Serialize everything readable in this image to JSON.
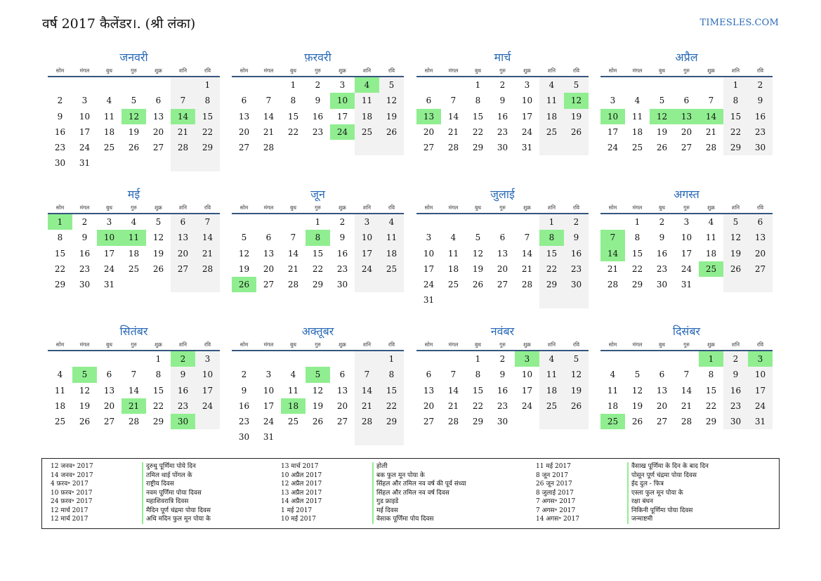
{
  "header": {
    "title": "वर्ष 2017 कैलेंडर।. (श्री लंका)",
    "brand": "TIMESLES.COM"
  },
  "weekdays": [
    "सोम",
    "मंगल",
    "बुध",
    "गुरु",
    "शुक्र",
    "शनि",
    "रवि"
  ],
  "months": [
    {
      "name": "जनवरी",
      "offset": 6,
      "days": 31,
      "holidays": [
        12,
        14
      ]
    },
    {
      "name": "फ़रवरी",
      "offset": 2,
      "days": 28,
      "holidays": [
        4,
        10,
        24
      ]
    },
    {
      "name": "मार्च",
      "offset": 2,
      "days": 31,
      "holidays": [
        12,
        13
      ]
    },
    {
      "name": "अप्रैल",
      "offset": 5,
      "days": 30,
      "holidays": [
        10,
        12,
        13,
        14
      ]
    },
    {
      "name": "मई",
      "offset": 0,
      "days": 31,
      "holidays": [
        1,
        10,
        11
      ]
    },
    {
      "name": "जून",
      "offset": 3,
      "days": 30,
      "holidays": [
        8,
        26
      ]
    },
    {
      "name": "जुलाई",
      "offset": 5,
      "days": 31,
      "holidays": [
        8
      ]
    },
    {
      "name": "अगस्त",
      "offset": 1,
      "days": 31,
      "holidays": [
        7,
        14,
        25
      ]
    },
    {
      "name": "सितंबर",
      "offset": 4,
      "days": 30,
      "holidays": [
        2,
        5,
        21,
        30
      ]
    },
    {
      "name": "अक्तूबर",
      "offset": 6,
      "days": 31,
      "holidays": [
        5,
        18
      ]
    },
    {
      "name": "नवंबर",
      "offset": 2,
      "days": 30,
      "holidays": [
        3
      ]
    },
    {
      "name": "दिसंबर",
      "offset": 4,
      "days": 31,
      "holidays": [
        1,
        3,
        25
      ]
    }
  ],
  "holidays": [
    [
      {
        "date": "12 जनव॰ 2017",
        "name": "दुरुथु पूर्णिमा पोये दिन"
      },
      {
        "date": "14 जनव॰ 2017",
        "name": "तमिल थाई पोंगल के"
      },
      {
        "date": "4 फ़रव॰ 2017",
        "name": "राष्ट्रीय दिवस"
      },
      {
        "date": "10 फ़रव॰ 2017",
        "name": "नवम पूर्णिमा पोया दिवस"
      },
      {
        "date": "24 फ़रव॰ 2017",
        "name": "महाशिवरात्रि दिवस"
      },
      {
        "date": "12 मार्च 2017",
        "name": "मैदिन पूर्ण चंद्रमा पोया दिवस"
      },
      {
        "date": "12 मार्च 2017",
        "name": "अधि मदिन फुल मून पोया के"
      }
    ],
    [
      {
        "date": "13 मार्च 2017",
        "name": "होली"
      },
      {
        "date": "10 अप्रैल 2017",
        "name": "बक फुल मून पोया के"
      },
      {
        "date": "12 अप्रैल 2017",
        "name": "सिंहल और तमिल नव वर्ष की पूर्व संध्या"
      },
      {
        "date": "13 अप्रैल 2017",
        "name": "सिंहल और तमिल नव वर्ष दिवस"
      },
      {
        "date": "14 अप्रैल 2017",
        "name": "गुड फ्राइडे"
      },
      {
        "date": "1 मई 2017",
        "name": "मई दिवस"
      },
      {
        "date": "10 मई 2017",
        "name": "वेसाक पूर्णिमा पोय दिवस"
      }
    ],
    [
      {
        "date": "11 मई 2017",
        "name": "वैसाख पूर्णिमा के दिन के बाद दिन"
      },
      {
        "date": "8 जून 2017",
        "name": "पोसून पूर्ण चंद्रमा पोया दिवस"
      },
      {
        "date": "26 जून 2017",
        "name": "ईद दुल - फित्र"
      },
      {
        "date": "8 जुलाई 2017",
        "name": "एस्ला फुल मून पोया के"
      },
      {
        "date": "7 अगस॰ 2017",
        "name": "रक्षा बंधन"
      },
      {
        "date": "7 अगस॰ 2017",
        "name": "निकिनी पूर्णिमा पोया दिवस"
      },
      {
        "date": "14 अगस॰ 2017",
        "name": "जन्माष्टमी"
      }
    ]
  ],
  "colors": {
    "holiday": "#90ee90",
    "weekend": "#f2f2f2",
    "accent": "#2a6ab8",
    "rule": "#35567f"
  }
}
